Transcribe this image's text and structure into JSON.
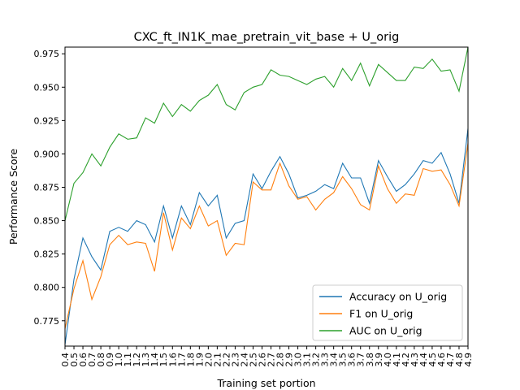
{
  "chart_data": {
    "type": "line",
    "title": "CXC_ft_IN1K_mae_pretrain_vit_base + U_orig",
    "xlabel": "Training set portion",
    "ylabel": "Performance Score",
    "xlim": [
      0.4,
      4.9
    ],
    "ylim": [
      0.756,
      0.98
    ],
    "x_ticks": [
      "0.4",
      "0.5",
      "0.6",
      "0.7",
      "0.8",
      "0.9",
      "1.0",
      "1.1",
      "1.2",
      "1.3",
      "1.4",
      "1.5",
      "1.6",
      "1.7",
      "1.8",
      "1.9",
      "2.0",
      "2.1",
      "2.2",
      "2.3",
      "2.4",
      "2.5",
      "2.6",
      "2.7",
      "2.8",
      "2.9",
      "3.0",
      "3.1",
      "3.2",
      "3.3",
      "3.4",
      "3.5",
      "3.6",
      "3.7",
      "3.8",
      "3.9",
      "4.0",
      "4.1",
      "4.2",
      "4.3",
      "4.4",
      "4.5",
      "4.6",
      "4.7",
      "4.8",
      "4.9"
    ],
    "y_ticks": [
      "0.775",
      "0.800",
      "0.825",
      "0.850",
      "0.875",
      "0.900",
      "0.925",
      "0.950",
      "0.975"
    ],
    "x": [
      0.4,
      0.5,
      0.6,
      0.7,
      0.8,
      0.9,
      1.0,
      1.1,
      1.2,
      1.3,
      1.4,
      1.5,
      1.6,
      1.7,
      1.8,
      1.9,
      2.0,
      2.1,
      2.2,
      2.3,
      2.4,
      2.5,
      2.6,
      2.7,
      2.8,
      2.9,
      3.0,
      3.1,
      3.2,
      3.3,
      3.4,
      3.5,
      3.6,
      3.7,
      3.8,
      3.9,
      4.0,
      4.1,
      4.2,
      4.3,
      4.4,
      4.5,
      4.6,
      4.7,
      4.8,
      4.9
    ],
    "legend_position": "lower-right",
    "grid": false,
    "series": [
      {
        "name": "Accuracy on U_orig",
        "color": "#1f77b4",
        "values": [
          0.757,
          0.806,
          0.837,
          0.823,
          0.813,
          0.842,
          0.845,
          0.842,
          0.85,
          0.847,
          0.834,
          0.861,
          0.837,
          0.861,
          0.847,
          0.871,
          0.861,
          0.869,
          0.837,
          0.848,
          0.85,
          0.885,
          0.874,
          0.887,
          0.898,
          0.885,
          0.867,
          0.869,
          0.872,
          0.877,
          0.874,
          0.893,
          0.882,
          0.882,
          0.863,
          0.895,
          0.883,
          0.872,
          0.877,
          0.885,
          0.895,
          0.893,
          0.901,
          0.885,
          0.863,
          0.919
        ]
      },
      {
        "name": "F1 on U_orig",
        "color": "#ff7f0e",
        "values": [
          0.769,
          0.799,
          0.82,
          0.791,
          0.808,
          0.832,
          0.839,
          0.832,
          0.834,
          0.833,
          0.812,
          0.856,
          0.828,
          0.852,
          0.844,
          0.861,
          0.846,
          0.85,
          0.824,
          0.833,
          0.832,
          0.879,
          0.873,
          0.873,
          0.893,
          0.876,
          0.866,
          0.868,
          0.858,
          0.866,
          0.871,
          0.883,
          0.874,
          0.862,
          0.858,
          0.891,
          0.874,
          0.863,
          0.87,
          0.869,
          0.889,
          0.887,
          0.888,
          0.877,
          0.861,
          0.908
        ]
      },
      {
        "name": "AUC on U_orig",
        "color": "#2ca02c",
        "values": [
          0.85,
          0.878,
          0.886,
          0.9,
          0.891,
          0.905,
          0.915,
          0.911,
          0.912,
          0.927,
          0.923,
          0.938,
          0.928,
          0.937,
          0.932,
          0.94,
          0.944,
          0.952,
          0.937,
          0.933,
          0.946,
          0.95,
          0.952,
          0.963,
          0.959,
          0.958,
          0.955,
          0.952,
          0.956,
          0.958,
          0.95,
          0.964,
          0.955,
          0.968,
          0.951,
          0.967,
          0.961,
          0.955,
          0.955,
          0.965,
          0.964,
          0.971,
          0.962,
          0.963,
          0.947,
          0.98
        ]
      }
    ]
  }
}
